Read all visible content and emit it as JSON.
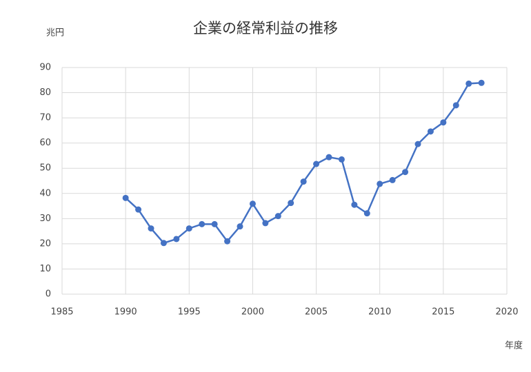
{
  "chart_data": {
    "type": "line",
    "title": "企業の経常利益の推移",
    "y_label": "兆円",
    "x_label": "年度",
    "x": [
      1990,
      1991,
      1992,
      1993,
      1994,
      1995,
      1996,
      1997,
      1998,
      1999,
      2000,
      2001,
      2002,
      2003,
      2004,
      2005,
      2006,
      2007,
      2008,
      2009,
      2010,
      2011,
      2012,
      2013,
      2014,
      2015,
      2016,
      2017,
      2018
    ],
    "series": [
      {
        "name": "経常利益",
        "color": "#4472c4",
        "values": [
          38.2,
          33.6,
          26.1,
          20.3,
          21.9,
          26.1,
          27.8,
          27.8,
          21.0,
          26.9,
          35.9,
          28.2,
          31.0,
          36.2,
          44.7,
          51.7,
          54.4,
          53.5,
          35.5,
          32.1,
          43.8,
          45.3,
          48.5,
          59.6,
          64.6,
          68.2,
          75.0,
          83.6,
          83.9
        ]
      }
    ],
    "xlim": [
      1985,
      2020
    ],
    "xticks": [
      1985,
      1990,
      1995,
      2000,
      2005,
      2010,
      2015,
      2020
    ],
    "ylim": [
      0,
      90
    ],
    "yticks": [
      0,
      10,
      20,
      30,
      40,
      50,
      60,
      70,
      80,
      90
    ],
    "grid": true
  }
}
